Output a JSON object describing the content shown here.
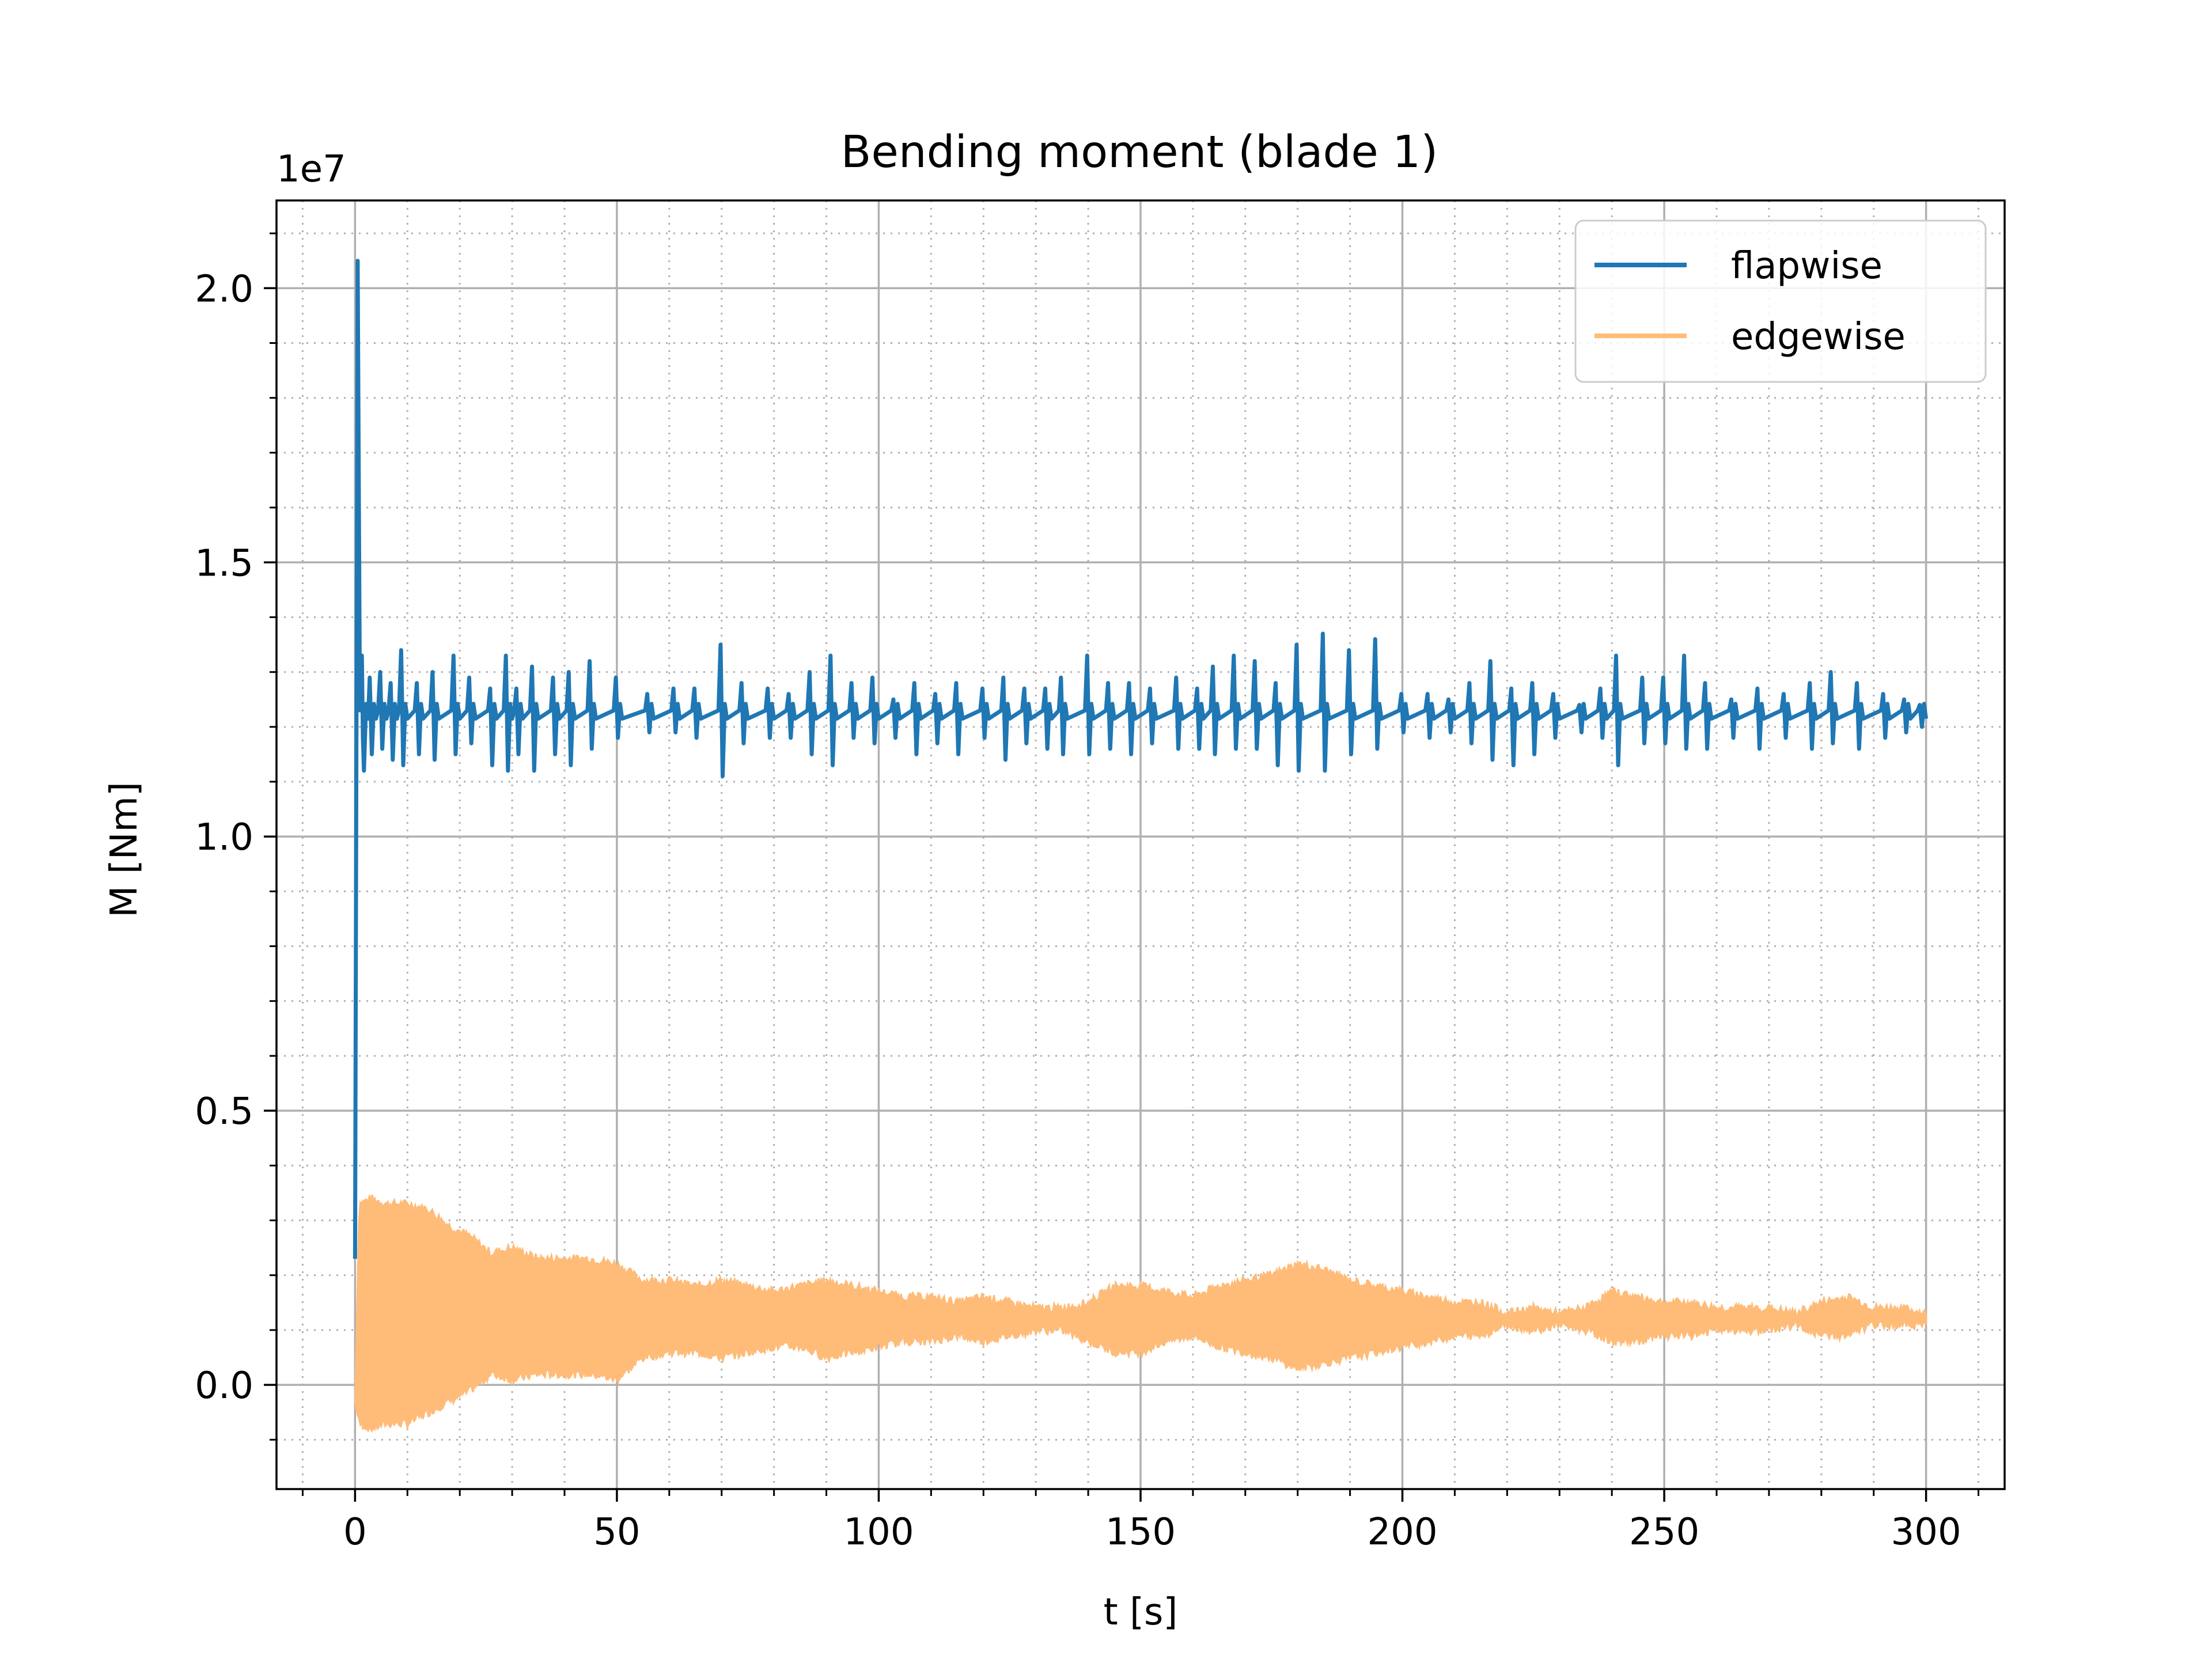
{
  "chart_data": {
    "type": "line",
    "title": "Bending moment (blade 1)",
    "xlabel": "t [s]",
    "ylabel": "M [Nm]",
    "y_offset_label": "1e7",
    "xlim": [
      -15,
      315
    ],
    "ylim": [
      -1900000,
      21600000
    ],
    "x_ticks": [
      0,
      50,
      100,
      150,
      200,
      250,
      300
    ],
    "x_tick_labels": [
      "0",
      "50",
      "100",
      "150",
      "200",
      "250",
      "300"
    ],
    "y_ticks": [
      0,
      5000000,
      10000000,
      15000000,
      20000000
    ],
    "y_tick_labels": [
      "0.0",
      "0.5",
      "1.0",
      "1.5",
      "2.0"
    ],
    "grid": "major solid, minor dotted",
    "legend_position": "upper right",
    "series": [
      {
        "name": "flapwise",
        "color": "#1f77b4",
        "style": "line",
        "mean": 12300000,
        "startup_points": [
          [
            0,
            2300000
          ],
          [
            0.5,
            20500000
          ],
          [
            0.9,
            13000000
          ],
          [
            1.5,
            11800000
          ]
        ],
        "spikes": [
          [
            1.5,
            13300000,
            11200000
          ],
          [
            3,
            12900000,
            11500000
          ],
          [
            5,
            13000000,
            11600000
          ],
          [
            7,
            12800000,
            11400000
          ],
          [
            9,
            13400000,
            11300000
          ],
          [
            12,
            12800000,
            11500000
          ],
          [
            15,
            13000000,
            11400000
          ],
          [
            19,
            13300000,
            11500000
          ],
          [
            22,
            12900000,
            11700000
          ],
          [
            26,
            12700000,
            11300000
          ],
          [
            29,
            13300000,
            11200000
          ],
          [
            31,
            12700000,
            11500000
          ],
          [
            34,
            13100000,
            11200000
          ],
          [
            38,
            12900000,
            11500000
          ],
          [
            41,
            13000000,
            11300000
          ],
          [
            45,
            13200000,
            11600000
          ],
          [
            50,
            12900000,
            11800000
          ],
          [
            56,
            12600000,
            11900000
          ],
          [
            61,
            12700000,
            11900000
          ],
          [
            65,
            12700000,
            11800000
          ],
          [
            70,
            13500000,
            11100000
          ],
          [
            74,
            12800000,
            11700000
          ],
          [
            79,
            12700000,
            11800000
          ],
          [
            83,
            12600000,
            11800000
          ],
          [
            87,
            13000000,
            11500000
          ],
          [
            91,
            13300000,
            11300000
          ],
          [
            95,
            12800000,
            11800000
          ],
          [
            99,
            12900000,
            11700000
          ],
          [
            103,
            12500000,
            11800000
          ],
          [
            107,
            12800000,
            11500000
          ],
          [
            111,
            12600000,
            11700000
          ],
          [
            115,
            12800000,
            11500000
          ],
          [
            120,
            12700000,
            11800000
          ],
          [
            124,
            12900000,
            11400000
          ],
          [
            128,
            12700000,
            11700000
          ],
          [
            132,
            12700000,
            11600000
          ],
          [
            135,
            12900000,
            11500000
          ],
          [
            140,
            13300000,
            11500000
          ],
          [
            144,
            12800000,
            11600000
          ],
          [
            148,
            12800000,
            11500000
          ],
          [
            152,
            12700000,
            11700000
          ],
          [
            157,
            12900000,
            11600000
          ],
          [
            161,
            12700000,
            11600000
          ],
          [
            164,
            13100000,
            11500000
          ],
          [
            168,
            13300000,
            11600000
          ],
          [
            172,
            13200000,
            11600000
          ],
          [
            176,
            12800000,
            11300000
          ],
          [
            180,
            13500000,
            11200000
          ],
          [
            185,
            13700000,
            11200000
          ],
          [
            190,
            13400000,
            11500000
          ],
          [
            195,
            13600000,
            11600000
          ],
          [
            200,
            12600000,
            11900000
          ],
          [
            205,
            12600000,
            11800000
          ],
          [
            209,
            12500000,
            11900000
          ],
          [
            213,
            12800000,
            11700000
          ],
          [
            217,
            13200000,
            11400000
          ],
          [
            221,
            12700000,
            11300000
          ],
          [
            225,
            12800000,
            11500000
          ],
          [
            229,
            12600000,
            11800000
          ],
          [
            234,
            12400000,
            11900000
          ],
          [
            238,
            12700000,
            11800000
          ],
          [
            241,
            13300000,
            11300000
          ],
          [
            246,
            12900000,
            11700000
          ],
          [
            250,
            12900000,
            11700000
          ],
          [
            254,
            13300000,
            11600000
          ],
          [
            258,
            12800000,
            11600000
          ],
          [
            263,
            12500000,
            11800000
          ],
          [
            268,
            12700000,
            11600000
          ],
          [
            273,
            12600000,
            11800000
          ],
          [
            278,
            12800000,
            11600000
          ],
          [
            282,
            13000000,
            11700000
          ],
          [
            287,
            12800000,
            11600000
          ],
          [
            292,
            12600000,
            11800000
          ],
          [
            296,
            12500000,
            11900000
          ],
          [
            299,
            12400000,
            12000000
          ]
        ]
      },
      {
        "name": "edgewise",
        "color": "#ffbb78",
        "style": "dense oscillation band",
        "envelope_x": [
          0,
          0.8,
          3,
          6,
          10,
          14,
          18,
          22,
          26,
          30,
          35,
          40,
          45,
          50,
          55,
          60,
          65,
          70,
          75,
          80,
          85,
          90,
          95,
          100,
          105,
          110,
          115,
          120,
          125,
          130,
          135,
          140,
          145,
          150,
          155,
          160,
          165,
          170,
          175,
          180,
          185,
          190,
          195,
          200,
          205,
          210,
          215,
          220,
          225,
          230,
          235,
          240,
          245,
          250,
          255,
          260,
          265,
          270,
          275,
          280,
          285,
          290,
          295,
          300
        ],
        "envelope_upper": [
          -300000,
          3300000,
          3400000,
          3300000,
          3300000,
          3200000,
          2900000,
          2700000,
          2400000,
          2500000,
          2300000,
          2300000,
          2300000,
          2200000,
          1900000,
          1900000,
          1800000,
          1900000,
          1800000,
          1700000,
          1800000,
          1900000,
          1800000,
          1700000,
          1600000,
          1600000,
          1500000,
          1600000,
          1500000,
          1400000,
          1400000,
          1500000,
          1800000,
          1800000,
          1700000,
          1600000,
          1800000,
          1900000,
          2000000,
          2200000,
          2100000,
          1900000,
          1800000,
          1700000,
          1600000,
          1500000,
          1500000,
          1300000,
          1400000,
          1300000,
          1400000,
          1700000,
          1600000,
          1500000,
          1500000,
          1400000,
          1400000,
          1400000,
          1300000,
          1500000,
          1600000,
          1400000,
          1400000,
          1300000
        ],
        "envelope_lower": [
          -300000,
          -700000,
          -800000,
          -700000,
          -700000,
          -500000,
          -300000,
          -100000,
          200000,
          100000,
          200000,
          200000,
          200000,
          100000,
          500000,
          600000,
          600000,
          500000,
          600000,
          700000,
          700000,
          500000,
          600000,
          700000,
          800000,
          800000,
          900000,
          800000,
          900000,
          1000000,
          1000000,
          800000,
          600000,
          600000,
          800000,
          900000,
          700000,
          600000,
          500000,
          300000,
          400000,
          500000,
          600000,
          700000,
          800000,
          900000,
          900000,
          1100000,
          1000000,
          1100000,
          1000000,
          800000,
          800000,
          900000,
          900000,
          1000000,
          1000000,
          1000000,
          1100000,
          900000,
          900000,
          1100000,
          1100000,
          1100000
        ]
      }
    ]
  }
}
